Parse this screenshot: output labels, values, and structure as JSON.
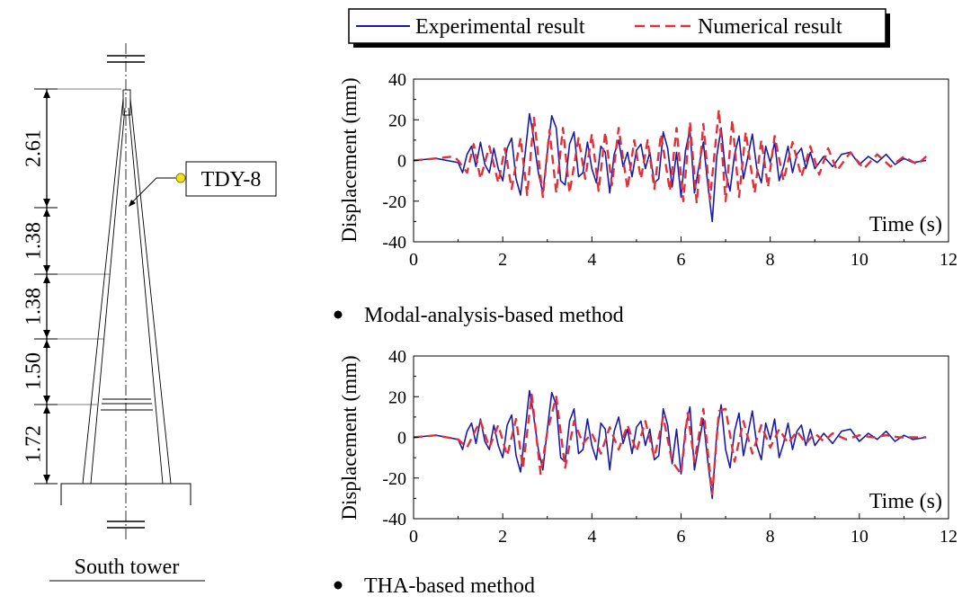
{
  "tower": {
    "label": "South tower",
    "sensor_label": "TDY-8",
    "dimensions": [
      "2.61",
      "1.38",
      "1.38",
      "1.50",
      "1.72"
    ]
  },
  "legend": {
    "experimental": "Experimental result",
    "numerical": "Numerical result"
  },
  "colors": {
    "experimental": "#1a1aa8",
    "numerical": "#e0303a"
  },
  "panels": [
    {
      "method_label": "Modal-analysis-based method",
      "ylabel": "Displacement (mm)",
      "xlabel": "Time (s)",
      "xlim": [
        0,
        12
      ],
      "ylim": [
        -40,
        40
      ],
      "xticks": [
        "0",
        "2",
        "4",
        "6",
        "8",
        "10",
        "12"
      ],
      "yticks": [
        "40",
        "20",
        "0",
        "-20",
        "-40"
      ]
    },
    {
      "method_label": "THA-based method",
      "ylabel": "Displacement (mm)",
      "xlabel": "Time (s)",
      "xlim": [
        0,
        12
      ],
      "ylim": [
        -40,
        40
      ],
      "xticks": [
        "0",
        "2",
        "4",
        "6",
        "8",
        "10",
        "12"
      ],
      "yticks": [
        "40",
        "20",
        "0",
        "-20",
        "-40"
      ]
    }
  ],
  "chart_data": [
    {
      "type": "line",
      "title": "Modal-analysis-based method",
      "xlabel": "Time (s)",
      "ylabel": "Displacement (mm)",
      "xlim": [
        0,
        12
      ],
      "ylim": [
        -40,
        40
      ],
      "series": [
        {
          "name": "Experimental result",
          "x": [
            0,
            0.5,
            1.0,
            1.1,
            1.2,
            1.3,
            1.4,
            1.5,
            1.6,
            1.7,
            1.8,
            1.9,
            2.0,
            2.1,
            2.2,
            2.3,
            2.4,
            2.5,
            2.6,
            2.65,
            2.8,
            2.9,
            3.0,
            3.1,
            3.2,
            3.3,
            3.4,
            3.5,
            3.6,
            3.7,
            3.8,
            3.9,
            4.0,
            4.1,
            4.2,
            4.3,
            4.4,
            4.5,
            4.6,
            4.7,
            4.8,
            4.9,
            5.0,
            5.1,
            5.2,
            5.3,
            5.4,
            5.5,
            5.6,
            5.7,
            5.8,
            5.9,
            6.0,
            6.1,
            6.2,
            6.3,
            6.4,
            6.5,
            6.6,
            6.7,
            6.8,
            6.9,
            7.0,
            7.1,
            7.2,
            7.3,
            7.4,
            7.5,
            7.6,
            7.7,
            7.8,
            7.9,
            8.0,
            8.1,
            8.2,
            8.3,
            8.4,
            8.5,
            8.6,
            8.7,
            8.8,
            8.9,
            9.0,
            9.2,
            9.4,
            9.6,
            9.8,
            10.0,
            10.2,
            10.4,
            10.6,
            10.8,
            11.0,
            11.2,
            11.5
          ],
          "values": [
            0,
            1,
            -1,
            -6,
            3,
            7,
            -3,
            9,
            -2,
            -6,
            6,
            -4,
            -10,
            6,
            11,
            -9,
            -17,
            3,
            23,
            17,
            -6,
            -16,
            4,
            22,
            16,
            -10,
            -12,
            8,
            14,
            -8,
            -6,
            9,
            -4,
            -11,
            7,
            4,
            -16,
            3,
            10,
            -3,
            4,
            -8,
            5,
            8,
            -4,
            4,
            -11,
            -9,
            14,
            6,
            -13,
            4,
            -18,
            5,
            15,
            -16,
            -3,
            9,
            -12,
            -30,
            2,
            16,
            -6,
            -15,
            3,
            12,
            -9,
            2,
            13,
            -4,
            -11,
            7,
            -1,
            9,
            -10,
            -3,
            7,
            -6,
            3,
            6,
            -4,
            4,
            -4,
            2,
            -3,
            3,
            4,
            -2,
            2,
            -1,
            3,
            -2,
            1,
            -1,
            0
          ]
        },
        {
          "name": "Numerical result",
          "x": [
            0,
            0.5,
            0.9,
            1.0,
            1.2,
            1.35,
            1.5,
            1.7,
            1.9,
            2.05,
            2.2,
            2.4,
            2.55,
            2.7,
            2.9,
            3.05,
            3.2,
            3.35,
            3.5,
            3.7,
            3.85,
            4.0,
            4.15,
            4.3,
            4.45,
            4.6,
            4.8,
            4.95,
            5.1,
            5.25,
            5.4,
            5.55,
            5.75,
            5.9,
            6.05,
            6.2,
            6.35,
            6.5,
            6.65,
            6.85,
            7.0,
            7.15,
            7.3,
            7.45,
            7.65,
            7.8,
            7.95,
            8.1,
            8.3,
            8.5,
            8.7,
            8.9,
            9.1,
            9.3,
            9.5,
            9.8,
            10.1,
            10.4,
            10.7,
            11.0,
            11.3,
            11.5
          ],
          "values": [
            0,
            1,
            2,
            0,
            -6,
            8,
            -9,
            7,
            -11,
            6,
            -14,
            11,
            -17,
            21,
            -18,
            15,
            -16,
            16,
            -16,
            11,
            -9,
            13,
            -15,
            14,
            -12,
            16,
            -14,
            10,
            -9,
            10,
            -14,
            13,
            -15,
            16,
            -20,
            19,
            -21,
            18,
            -19,
            25,
            -20,
            20,
            -18,
            14,
            -16,
            10,
            -13,
            12,
            -10,
            9,
            -8,
            7,
            -7,
            6,
            -5,
            4,
            -4,
            3,
            -3,
            2,
            -2,
            2
          ]
        }
      ]
    },
    {
      "type": "line",
      "title": "THA-based method",
      "xlabel": "Time (s)",
      "ylabel": "Displacement (mm)",
      "xlim": [
        0,
        12
      ],
      "ylim": [
        -40,
        40
      ],
      "series": [
        {
          "name": "Experimental result",
          "x": [
            0,
            0.5,
            1.0,
            1.1,
            1.2,
            1.3,
            1.4,
            1.5,
            1.6,
            1.7,
            1.8,
            1.9,
            2.0,
            2.1,
            2.2,
            2.3,
            2.4,
            2.5,
            2.6,
            2.65,
            2.8,
            2.9,
            3.0,
            3.1,
            3.2,
            3.3,
            3.4,
            3.5,
            3.6,
            3.7,
            3.8,
            3.9,
            4.0,
            4.1,
            4.2,
            4.3,
            4.4,
            4.5,
            4.6,
            4.7,
            4.8,
            4.9,
            5.0,
            5.1,
            5.2,
            5.3,
            5.4,
            5.5,
            5.6,
            5.7,
            5.8,
            5.9,
            6.0,
            6.1,
            6.2,
            6.3,
            6.4,
            6.5,
            6.6,
            6.7,
            6.8,
            6.9,
            7.0,
            7.1,
            7.2,
            7.3,
            7.4,
            7.5,
            7.6,
            7.7,
            7.8,
            7.9,
            8.0,
            8.1,
            8.2,
            8.3,
            8.4,
            8.5,
            8.6,
            8.7,
            8.8,
            8.9,
            9.0,
            9.2,
            9.4,
            9.6,
            9.8,
            10.0,
            10.2,
            10.4,
            10.6,
            10.8,
            11.0,
            11.2,
            11.5
          ],
          "values": [
            0,
            1,
            -1,
            -6,
            3,
            7,
            -3,
            9,
            -2,
            -6,
            6,
            -4,
            -10,
            6,
            11,
            -9,
            -17,
            3,
            23,
            17,
            -6,
            -16,
            4,
            22,
            16,
            -10,
            -12,
            8,
            14,
            -8,
            -6,
            9,
            -4,
            -11,
            7,
            4,
            -16,
            3,
            10,
            -3,
            4,
            -8,
            5,
            8,
            -4,
            4,
            -11,
            -9,
            14,
            6,
            -13,
            4,
            -18,
            5,
            15,
            -16,
            -3,
            9,
            -12,
            -30,
            2,
            16,
            -6,
            -15,
            3,
            12,
            -9,
            2,
            13,
            -4,
            -11,
            7,
            -1,
            9,
            -10,
            -3,
            7,
            -6,
            3,
            6,
            -4,
            4,
            -4,
            2,
            -3,
            3,
            4,
            -2,
            2,
            -1,
            3,
            -2,
            1,
            -1,
            0
          ]
        },
        {
          "name": "Numerical result",
          "x": [
            0,
            0.5,
            1.0,
            1.2,
            1.4,
            1.5,
            1.7,
            1.9,
            2.1,
            2.3,
            2.45,
            2.65,
            2.85,
            3.0,
            3.2,
            3.4,
            3.6,
            3.8,
            4.0,
            4.2,
            4.4,
            4.6,
            4.8,
            5.0,
            5.2,
            5.4,
            5.6,
            5.8,
            6.0,
            6.15,
            6.3,
            6.5,
            6.7,
            6.85,
            7.0,
            7.2,
            7.4,
            7.6,
            7.8,
            8.0,
            8.2,
            8.4,
            8.6,
            8.8,
            9.0,
            9.2,
            9.4,
            9.7,
            10.0,
            10.3,
            10.6,
            10.9,
            11.2,
            11.5
          ],
          "values": [
            0,
            1,
            -1,
            -5,
            4,
            8,
            -5,
            6,
            -9,
            9,
            -15,
            21,
            -18,
            3,
            20,
            -15,
            8,
            -3,
            2,
            -8,
            5,
            -6,
            6,
            -7,
            8,
            -10,
            10,
            -12,
            -18,
            12,
            -12,
            14,
            -28,
            13,
            14,
            -12,
            8,
            -8,
            6,
            -5,
            4,
            -3,
            3,
            -3,
            2,
            -2,
            2,
            -1,
            1,
            0,
            1,
            0,
            0,
            0
          ]
        }
      ]
    }
  ]
}
